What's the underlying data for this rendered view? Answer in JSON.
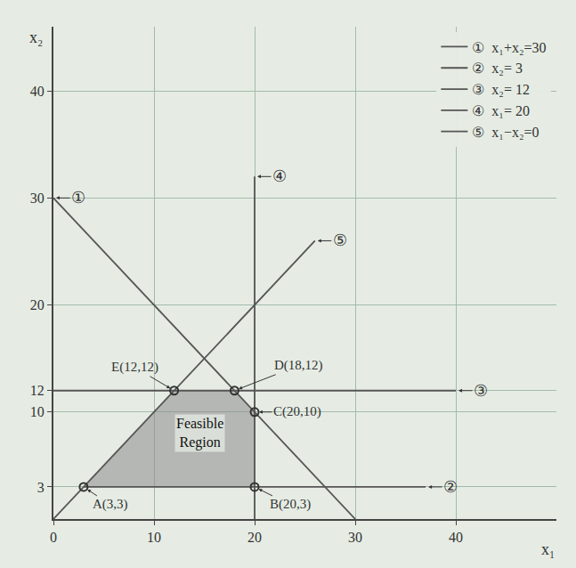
{
  "chart_data": {
    "type": "line",
    "x_label": "x₁",
    "y_label": "x₂",
    "xlim": [
      0,
      50
    ],
    "ylim": [
      0,
      46
    ],
    "xticks": [
      0,
      10,
      20,
      30,
      40
    ],
    "yticks": [
      3,
      10,
      12,
      20,
      30,
      40
    ],
    "grid": true,
    "legend": "top right",
    "series": [
      {
        "label": "①",
        "name": "x₁+x₂=30",
        "color": "#555555",
        "x": [
          30,
          0
        ],
        "values": [
          0,
          30
        ]
      },
      {
        "label": "②",
        "name": "x₂= 3",
        "color": "#555555",
        "x": [
          3,
          37
        ],
        "values": [
          3,
          3
        ]
      },
      {
        "label": "③",
        "name": "x₂= 12",
        "color": "#555555",
        "x": [
          0,
          40
        ],
        "values": [
          12,
          12
        ]
      },
      {
        "label": "④",
        "name": "x₁= 20",
        "color": "#555555",
        "x": [
          20,
          20
        ],
        "values": [
          0,
          32
        ]
      },
      {
        "label": "⑤",
        "name": "x₁−x₂=0",
        "color": "#555555",
        "x": [
          0,
          26
        ],
        "values": [
          0,
          26
        ]
      }
    ],
    "points": [
      {
        "label": "A(3,3)",
        "x": 3,
        "y": 3
      },
      {
        "label": "B(20,3)",
        "x": 20,
        "y": 3
      },
      {
        "label": "C(20,10)",
        "x": 20,
        "y": 10
      },
      {
        "label": "D(18,12)",
        "x": 18,
        "y": 12
      },
      {
        "label": "E(12,12)",
        "x": 12,
        "y": 12
      }
    ],
    "region": {
      "label": "Feasible Region",
      "vertices": [
        "A(3,3)",
        "B(20,3)",
        "C(20,10)",
        "D(18,12)",
        "E(12,12)"
      ],
      "color": "#8c8c8c"
    }
  }
}
